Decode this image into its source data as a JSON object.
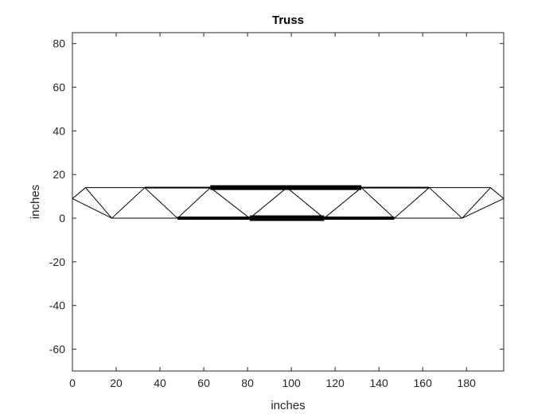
{
  "chart_data": {
    "type": "line",
    "title": "Truss",
    "xlabel": "inches",
    "ylabel": "inches",
    "xlim": [
      0,
      197
    ],
    "ylim": [
      -70,
      85
    ],
    "xticks": [
      0,
      20,
      40,
      60,
      80,
      100,
      120,
      140,
      160,
      180
    ],
    "yticks": [
      -60,
      -40,
      -20,
      0,
      20,
      40,
      60,
      80
    ],
    "grid": false,
    "background": "#ffffff",
    "line_color": "#000000",
    "members": [
      {
        "from": [
          0,
          9
        ],
        "to": [
          6,
          14
        ],
        "weight": 1
      },
      {
        "from": [
          0,
          9
        ],
        "to": [
          18,
          0
        ],
        "weight": 1
      },
      {
        "from": [
          6,
          14
        ],
        "to": [
          18,
          0
        ],
        "weight": 1
      },
      {
        "from": [
          6,
          14
        ],
        "to": [
          33,
          14
        ],
        "weight": 1
      },
      {
        "from": [
          18,
          0
        ],
        "to": [
          33,
          14
        ],
        "weight": 1
      },
      {
        "from": [
          18,
          0
        ],
        "to": [
          48,
          0
        ],
        "weight": 1
      },
      {
        "from": [
          33,
          14
        ],
        "to": [
          48,
          0
        ],
        "weight": 1
      },
      {
        "from": [
          33,
          14
        ],
        "to": [
          63,
          14
        ],
        "weight": 2
      },
      {
        "from": [
          48,
          0
        ],
        "to": [
          63,
          14
        ],
        "weight": 1
      },
      {
        "from": [
          48,
          0
        ],
        "to": [
          81,
          0
        ],
        "weight": 4
      },
      {
        "from": [
          63,
          14
        ],
        "to": [
          81,
          0
        ],
        "weight": 1
      },
      {
        "from": [
          63,
          14
        ],
        "to": [
          98,
          14
        ],
        "weight": 6
      },
      {
        "from": [
          81,
          0
        ],
        "to": [
          98,
          14
        ],
        "weight": 1
      },
      {
        "from": [
          81,
          0
        ],
        "to": [
          115,
          0
        ],
        "weight": 7
      },
      {
        "from": [
          98,
          14
        ],
        "to": [
          115,
          0
        ],
        "weight": 1
      },
      {
        "from": [
          98,
          14
        ],
        "to": [
          132,
          14
        ],
        "weight": 6
      },
      {
        "from": [
          115,
          0
        ],
        "to": [
          132,
          14
        ],
        "weight": 1
      },
      {
        "from": [
          115,
          0
        ],
        "to": [
          147,
          0
        ],
        "weight": 4
      },
      {
        "from": [
          132,
          14
        ],
        "to": [
          147,
          0
        ],
        "weight": 1
      },
      {
        "from": [
          132,
          14
        ],
        "to": [
          163,
          14
        ],
        "weight": 2
      },
      {
        "from": [
          147,
          0
        ],
        "to": [
          163,
          14
        ],
        "weight": 1
      },
      {
        "from": [
          147,
          0
        ],
        "to": [
          178,
          0
        ],
        "weight": 1
      },
      {
        "from": [
          163,
          14
        ],
        "to": [
          178,
          0
        ],
        "weight": 1
      },
      {
        "from": [
          163,
          14
        ],
        "to": [
          191,
          14
        ],
        "weight": 1
      },
      {
        "from": [
          178,
          0
        ],
        "to": [
          191,
          14
        ],
        "weight": 1
      },
      {
        "from": [
          178,
          0
        ],
        "to": [
          197,
          9
        ],
        "weight": 1
      },
      {
        "from": [
          191,
          14
        ],
        "to": [
          197,
          9
        ],
        "weight": 1
      }
    ]
  }
}
